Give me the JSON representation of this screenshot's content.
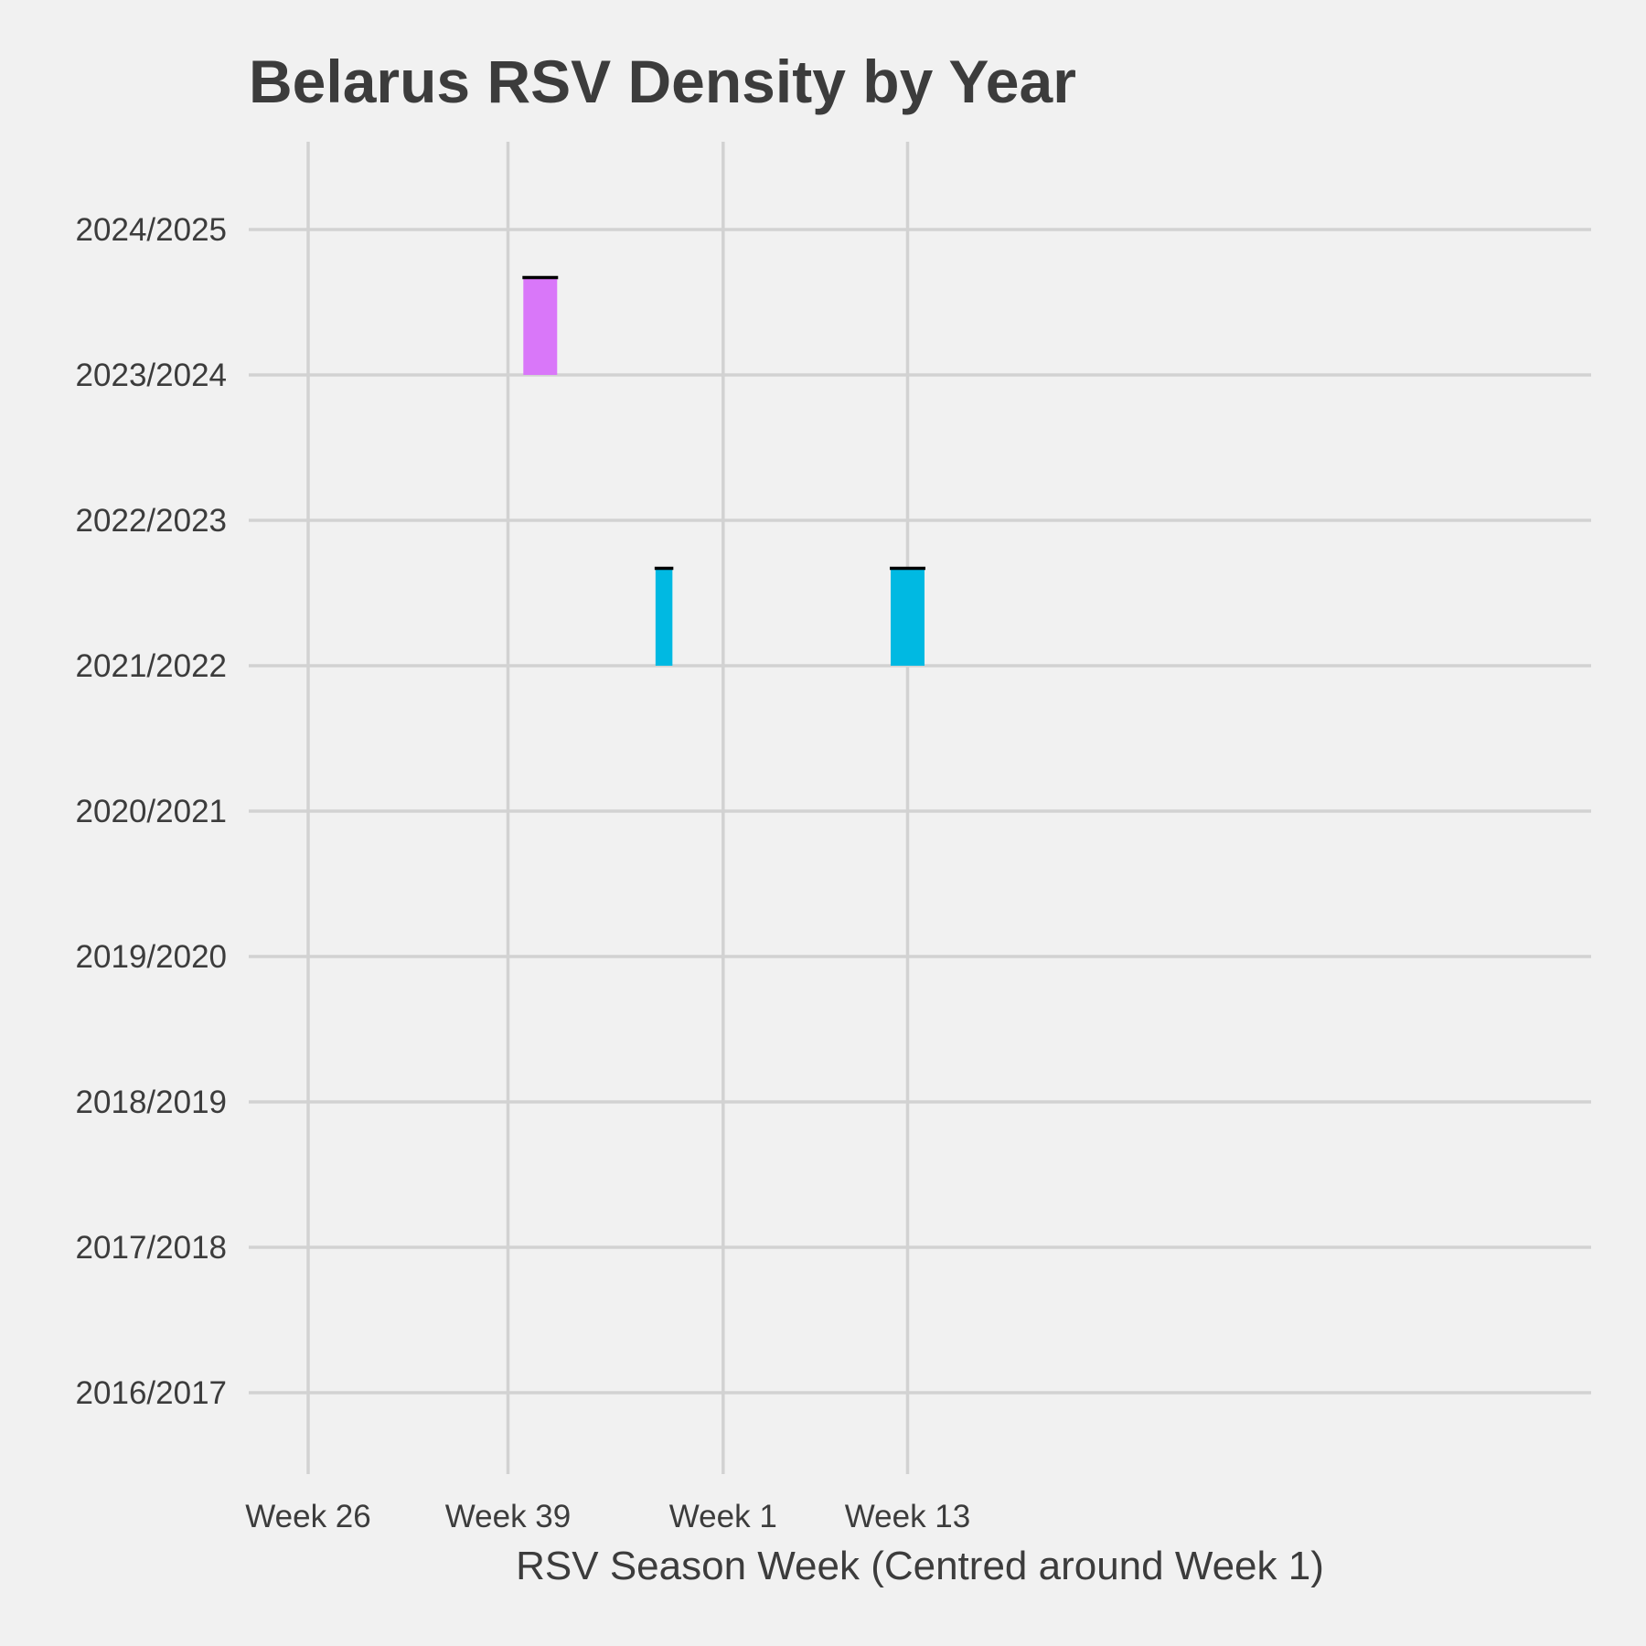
{
  "chart_data": {
    "type": "bar",
    "title": "Belarus RSV Density by Year",
    "xlabel": "RSV Season Week (Centred around Week 1)",
    "ylabel": "",
    "x_ticks": [
      {
        "label": "Week 26",
        "week_offset": -27
      },
      {
        "label": "Week 39",
        "week_offset": -14
      },
      {
        "label": "Week 1",
        "week_offset": 0
      },
      {
        "label": "Week 13",
        "week_offset": 12
      }
    ],
    "x_range": [
      -30,
      28
    ],
    "y_categories": [
      "2016/2017",
      "2017/2018",
      "2018/2019",
      "2019/2020",
      "2020/2021",
      "2021/2022",
      "2022/2023",
      "2023/2024",
      "2024/2025"
    ],
    "grid": true,
    "legend": "none",
    "series": [
      {
        "season": "2023/2024",
        "color": "#d977f9",
        "bars": [
          {
            "week_start": -13.0,
            "week_end": -10.8,
            "density": 1.0
          }
        ]
      },
      {
        "season": "2021/2022",
        "color": "#00b9e2",
        "bars": [
          {
            "week_start": -4.4,
            "week_end": -3.3,
            "density": 1.0
          },
          {
            "week_start": 10.9,
            "week_end": 13.1,
            "density": 1.0
          }
        ]
      }
    ],
    "peak_marker_color": "#000000"
  }
}
